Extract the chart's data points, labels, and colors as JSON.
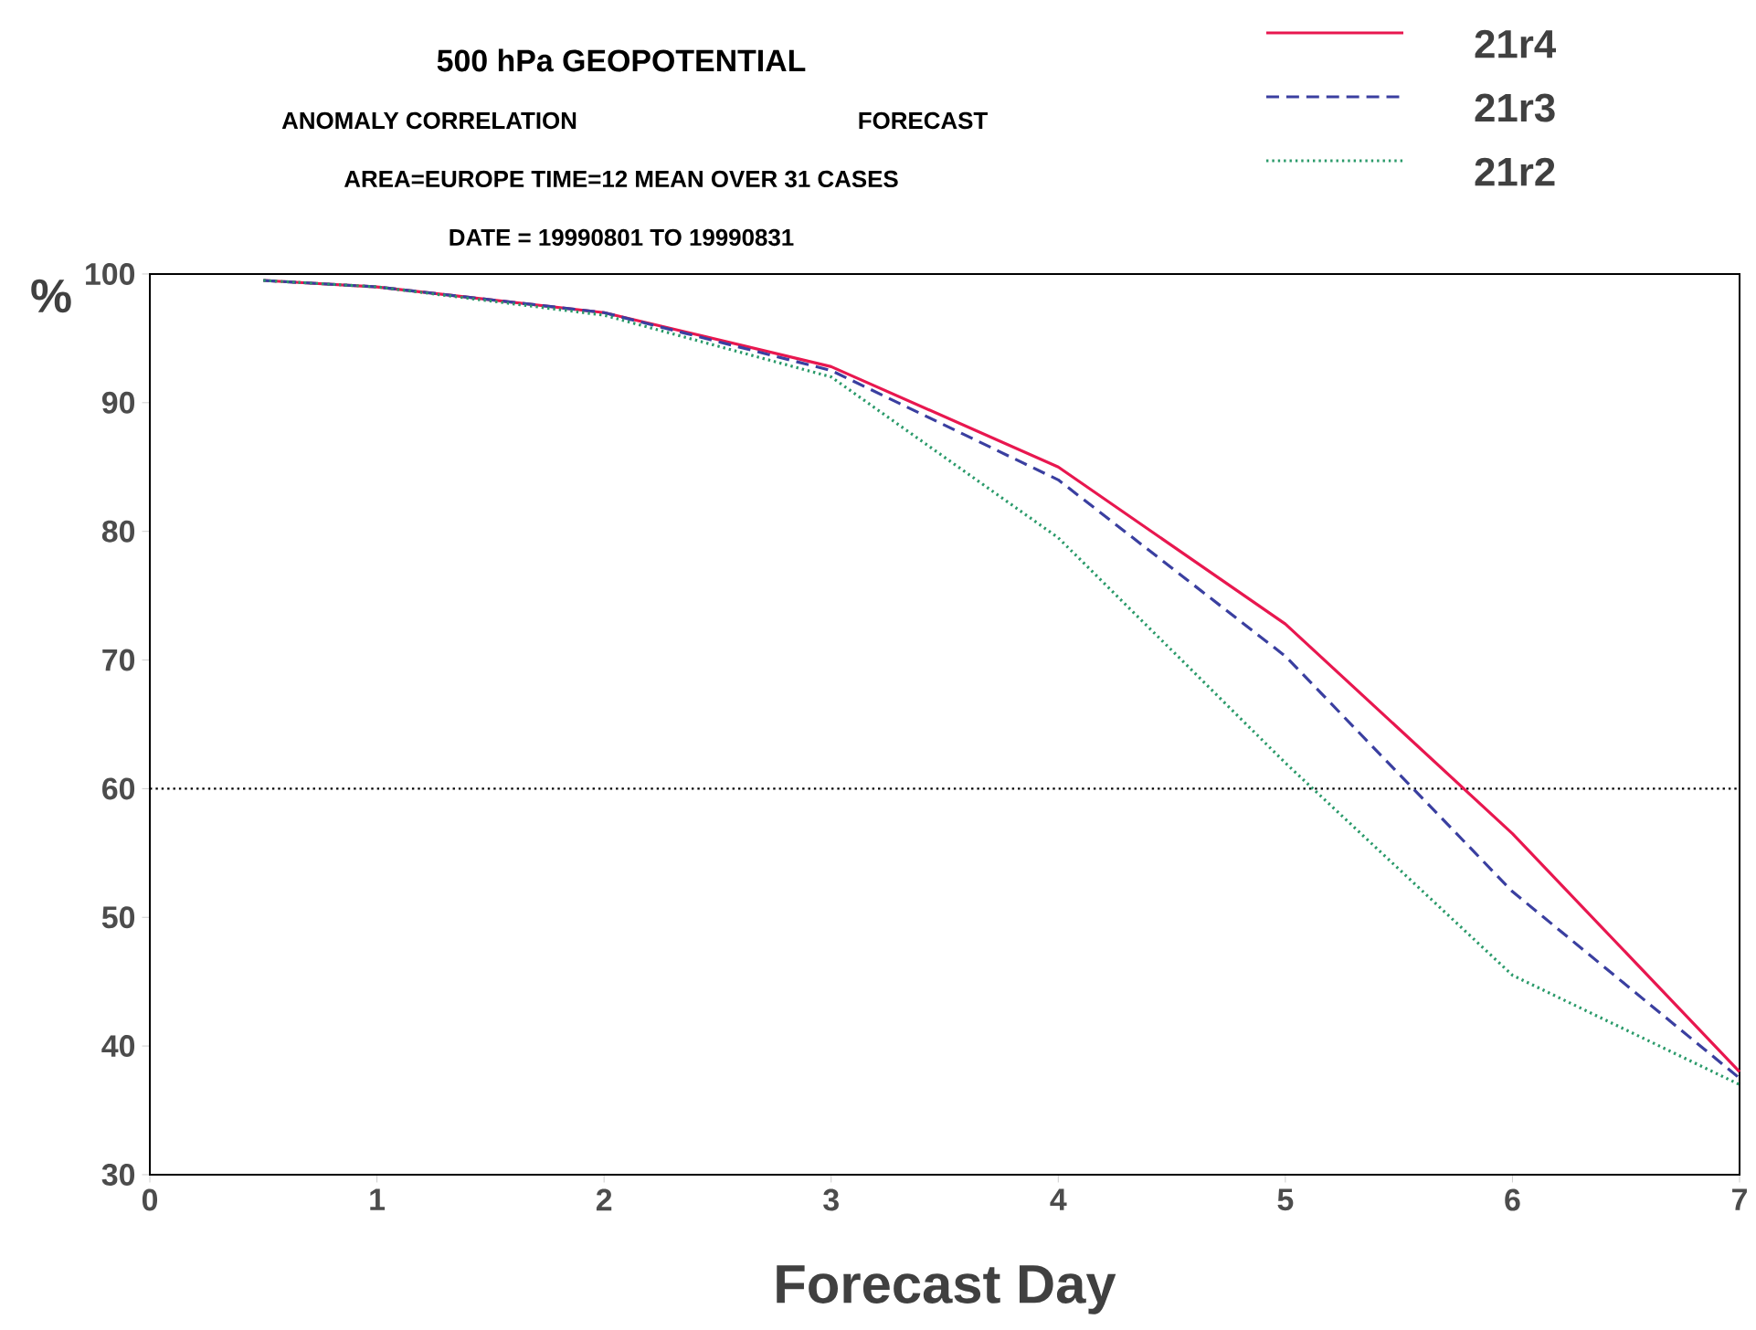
{
  "chart_data": {
    "type": "line",
    "title": "500 hPa GEOPOTENTIAL",
    "annotations": [
      "ANOMALY CORRELATION",
      "FORECAST",
      "AREA=EUROPE   TIME=12   MEAN OVER 31 CASES",
      "DATE = 19990801 TO 19990831"
    ],
    "xlabel": "Forecast Day",
    "ylabel": "%",
    "x": [
      0.5,
      1,
      2,
      3,
      4,
      5,
      6,
      7
    ],
    "series": [
      {
        "name": "21r4",
        "color": "#e8174f",
        "line_style": "solid",
        "values": [
          99.5,
          99,
          97,
          92.8,
          85,
          72.8,
          56.5,
          38
        ]
      },
      {
        "name": "21r3",
        "color": "#3a3fa0",
        "line_style": "dashed",
        "values": [
          99.5,
          99,
          97,
          92.5,
          84,
          70.3,
          52,
          37.5
        ]
      },
      {
        "name": "21r2",
        "color": "#2a9a6a",
        "line_style": "dotted",
        "values": [
          99.5,
          99,
          96.8,
          92,
          79.5,
          62,
          45.5,
          37
        ]
      }
    ],
    "xlim": [
      0,
      7
    ],
    "ylim": [
      30,
      100
    ],
    "xticks": [
      0,
      1,
      2,
      3,
      4,
      5,
      6,
      7
    ],
    "yticks": [
      30,
      40,
      50,
      60,
      70,
      80,
      90,
      100
    ],
    "ref_lines": [
      {
        "axis": "y",
        "value": 60,
        "color": "#000000",
        "line_style": "dotted"
      }
    ],
    "legend": "top right",
    "marker": "none",
    "grid": false
  }
}
